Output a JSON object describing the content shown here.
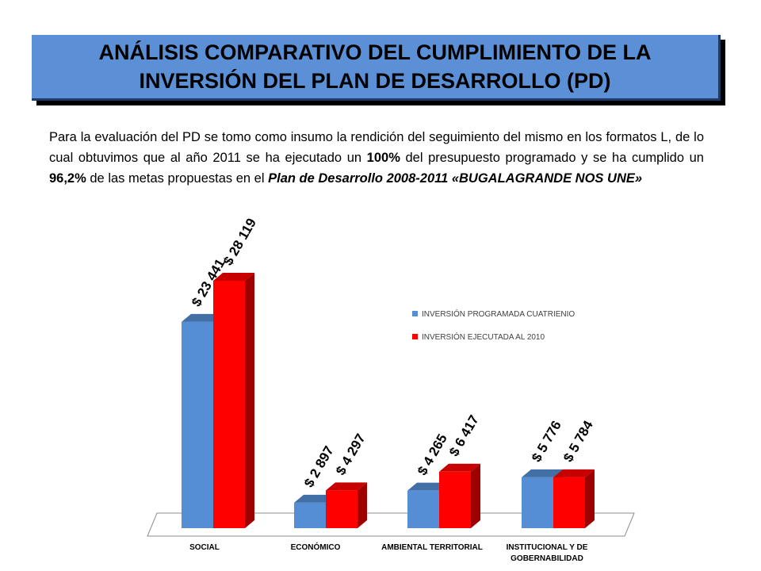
{
  "header": {
    "title_line1": "ANÁLISIS COMPARATIVO DEL CUMPLIMIENTO DE LA",
    "title_line2": "INVERSIÓN DEL PLAN DE DESARROLLO (PD)"
  },
  "intro": {
    "text1": "Para la evaluación del PD se tomo como insumo la rendición del seguimiento del mismo en los formatos L, de lo cual obtuvimos que al año 2011 se ha ejecutado un ",
    "pct_budget": "100%",
    "text2": " del presupuesto programado y se ha cumplido un ",
    "pct_goals": "96,2%",
    "text3": "   de las metas propuestas en el ",
    "plan_name": "Plan de Desarrollo 2008-2011 «BUGALAGRANDE  NOS UNE»"
  },
  "colors": {
    "programada": "#558ed5",
    "ejecutada": "#ff0000",
    "title_bg": "#5b8fd6"
  },
  "chart_data": {
    "type": "bar",
    "categories": [
      "SOCIAL",
      "ECONÓMICO",
      "AMBIENTAL TERRITORIAL",
      "INSTITUCIONAL Y DE GOBERNABILIDAD"
    ],
    "series": [
      {
        "name": "INVERSIÓN PROGRAMADA CUATRIENIO",
        "values": [
          23441,
          2897,
          4265,
          5776
        ],
        "labels": [
          "$ 23 441",
          "$ 2 897",
          "$ 4 265",
          "$ 5 776"
        ],
        "color": "#558ed5"
      },
      {
        "name": "INVERSIÓN EJECUTADA AL 2010",
        "values": [
          28119,
          4297,
          6417,
          5784
        ],
        "labels": [
          "$ 28 119",
          "$ 4 297",
          "$ 6 417",
          "$ 5 784"
        ],
        "color": "#ff0000"
      }
    ],
    "ylim": [
      0,
      28119
    ],
    "grid": false,
    "legend": "right",
    "title": "",
    "xlabel": "",
    "ylabel": ""
  }
}
